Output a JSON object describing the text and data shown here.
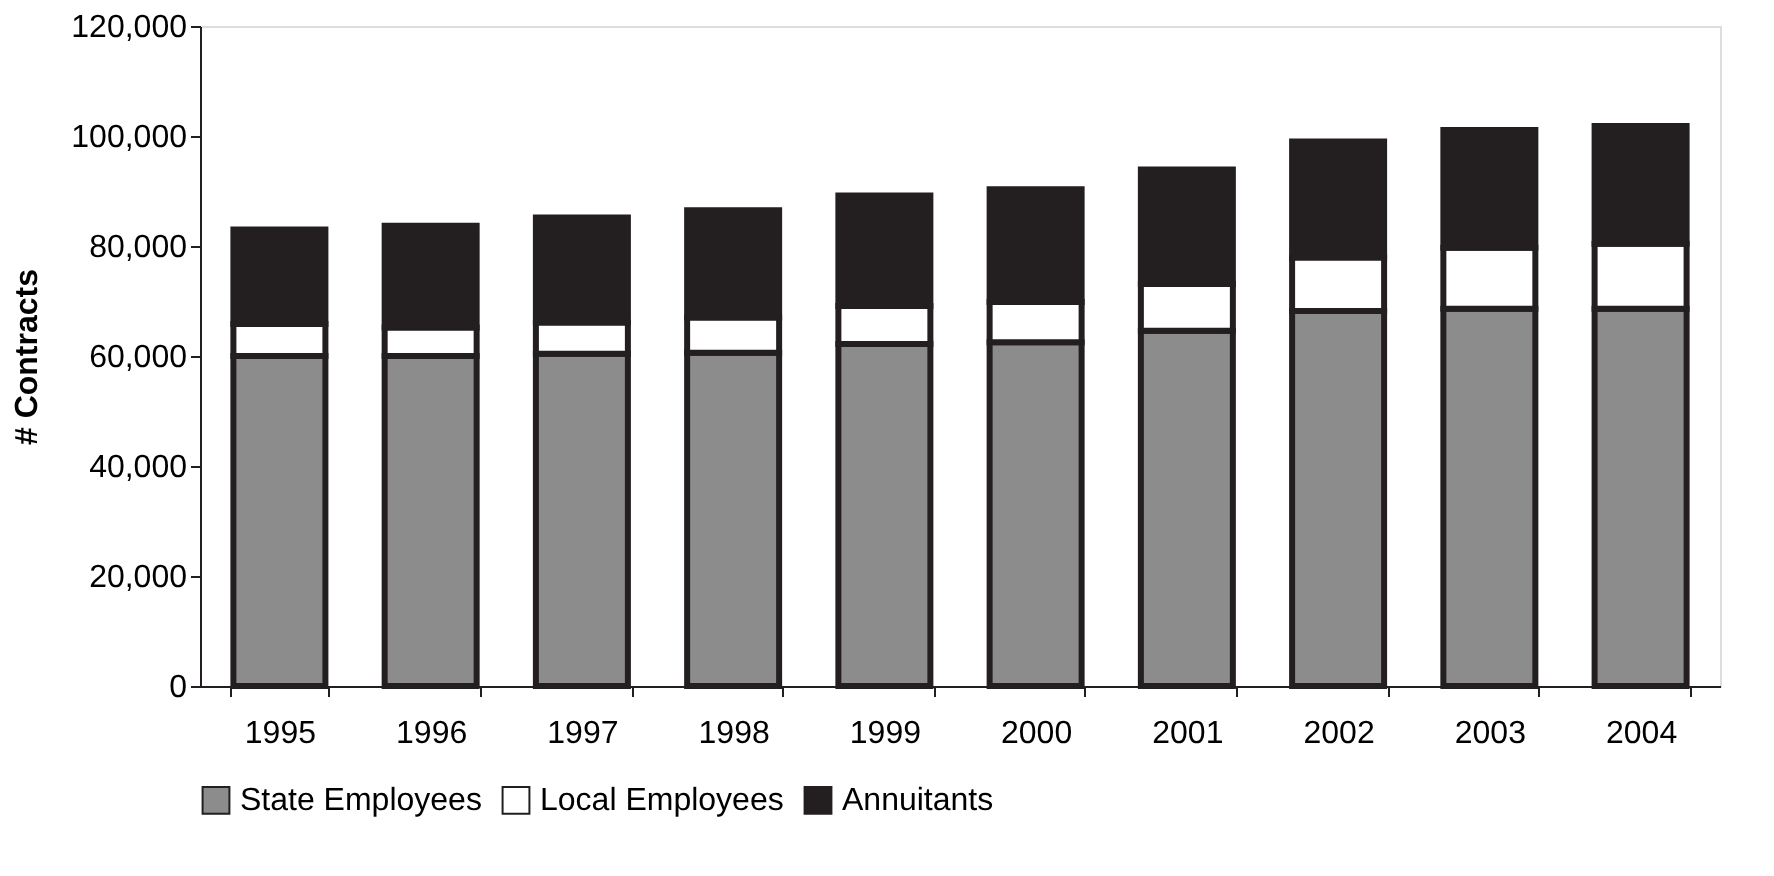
{
  "chart_data": {
    "type": "bar",
    "stacked": true,
    "ylabel": "# Contracts",
    "categories": [
      "1995",
      "1996",
      "1997",
      "1998",
      "1999",
      "2000",
      "2001",
      "2002",
      "2003",
      "2004"
    ],
    "series": [
      {
        "name": "State Employees",
        "color": "#8c8c8c",
        "values": [
          60000,
          60000,
          60400,
          60600,
          62200,
          62500,
          64600,
          68200,
          68600,
          68600
        ]
      },
      {
        "name": "Local Employees",
        "color": "#ffffff",
        "values": [
          5800,
          5200,
          5700,
          6400,
          6900,
          7300,
          8500,
          9700,
          11100,
          11800
        ]
      },
      {
        "name": "Annuitants",
        "color": "#231f20",
        "values": [
          17200,
          18500,
          19100,
          19500,
          20100,
          20500,
          20800,
          21100,
          21400,
          21400
        ]
      }
    ],
    "ylim": [
      0,
      120000
    ],
    "yticks": [
      0,
      {
        "value": 20000,
        "label": "20,000"
      },
      {
        "value": 40000,
        "label": "40,000"
      },
      {
        "value": 60000,
        "label": "60,000"
      },
      {
        "value": 80000,
        "label": "80,000"
      },
      {
        "value": 100000,
        "label": "100,000"
      },
      {
        "value": 120000,
        "label": "120,000"
      }
    ],
    "grid": false,
    "legend": "bottom"
  }
}
